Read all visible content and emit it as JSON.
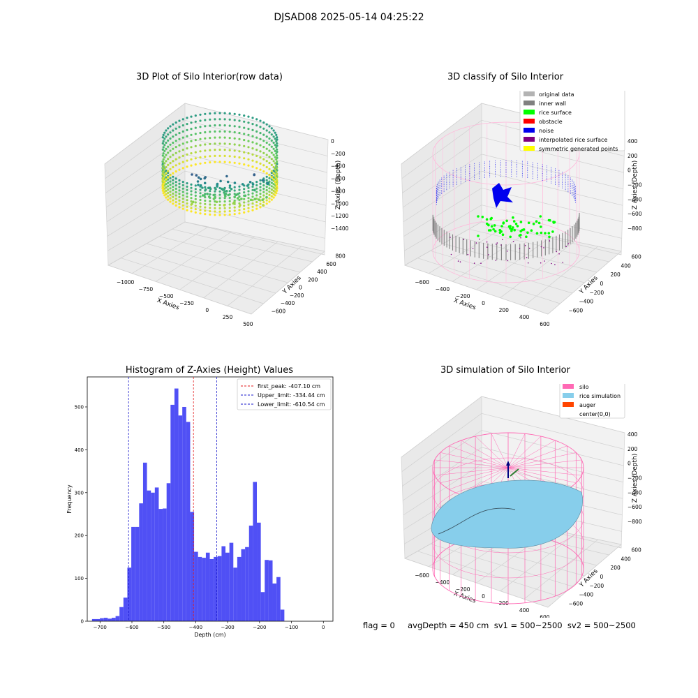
{
  "figure": {
    "title": "DJSAD08 2025-05-14 04:25:22",
    "status_line": "flag = 0     avgDepth = 450 cm  sv1 = 500~2500  sv2 = 500~2500"
  },
  "colors": {
    "hist_bar": "#5050f5",
    "first_peak": "#e31a1c",
    "limits": "#1a1acc",
    "original_data": "#b3b3b3",
    "inner_wall": "#808080",
    "rice_surface": "#00ff00",
    "obstacle": "#ff0000",
    "noise": "#0000ee",
    "interpolated_rice_surface": "#800080",
    "symmetric_generated_points": "#ffff00",
    "silo": "#ff69b4",
    "rice_simulation": "#87ceeb",
    "auger": "#ff4500"
  },
  "chart_data": [
    {
      "type": "scatter",
      "title": "3D Plot of Silo Interior(row data)",
      "xlabel": "X Axies",
      "ylabel": "Y Axies",
      "zlabel": "Z Axies (Depth)",
      "x_ticks": [
        "−1000",
        "−750",
        "−500",
        "−250",
        "0",
        "250",
        "500"
      ],
      "y_ticks": [
        "−600",
        "−400",
        "−200",
        "0",
        "200",
        "400",
        "600",
        "800"
      ],
      "z_ticks": [
        "0",
        "−200",
        "−400",
        "−600",
        "−800",
        "−1000",
        "−1200",
        "−1400"
      ],
      "colormap": "viridis"
    },
    {
      "type": "scatter",
      "title": "3D classify of Silo Interior",
      "xlabel": "X Axies",
      "ylabel": "Y Axies",
      "zlabel": "Z Axies (Depth)",
      "x_ticks": [
        "−600",
        "−400",
        "−200",
        "0",
        "200",
        "400",
        "600"
      ],
      "y_ticks": [
        "−600",
        "−400",
        "−200",
        "0",
        "200",
        "400",
        "600"
      ],
      "z_ticks": [
        "400",
        "200",
        "0",
        "−200",
        "−400",
        "−600",
        "−800"
      ],
      "legend": [
        "original data",
        "inner wall",
        "rice surface",
        "obstacle",
        "noise",
        "interpolated rice surface",
        "symmetric generated points"
      ],
      "legend_position": "top-right"
    },
    {
      "type": "bar",
      "title": "Histogram of Z-Axies (Height) Values",
      "xlabel": "Depth (cm)",
      "ylabel": "Frequency",
      "xlim": [
        -740,
        30
      ],
      "ylim": [
        0,
        570
      ],
      "x_ticks": [
        -700,
        -600,
        -500,
        -400,
        -300,
        -200,
        -100,
        0
      ],
      "x_tick_labels": [
        "−700",
        "−600",
        "−500",
        "−400",
        "−300",
        "−200",
        "−100",
        "0"
      ],
      "y_ticks": [
        0,
        100,
        200,
        300,
        400,
        500
      ],
      "bin_start": -725,
      "bin_width": 12.3,
      "values": [
        5,
        5,
        7,
        8,
        6,
        8,
        12,
        33,
        55,
        125,
        220,
        220,
        275,
        370,
        305,
        300,
        312,
        262,
        263,
        322,
        505,
        543,
        480,
        500,
        465,
        255,
        162,
        150,
        148,
        160,
        145,
        150,
        152,
        175,
        160,
        183,
        125,
        150,
        168,
        173,
        223,
        325,
        230,
        68,
        143,
        142,
        88,
        103,
        27
      ],
      "lines": [
        {
          "label": "first_peak: -407.10 cm",
          "x": -407.1,
          "color": "#e31a1c"
        },
        {
          "label": "Upper_limit: -334.44 cm",
          "x": -334.44,
          "color": "#1a1acc"
        },
        {
          "label": "Lower_limit: -610.54 cm",
          "x": -610.54,
          "color": "#1a1acc"
        }
      ],
      "legend_position": "top-right"
    },
    {
      "type": "scatter",
      "title": "3D simulation of Silo Interior",
      "xlabel": "X Axies",
      "ylabel": "Y Axies",
      "zlabel": "Z Axies (Depth)",
      "x_ticks": [
        "−600",
        "−400",
        "−200",
        "0",
        "200",
        "400",
        "600"
      ],
      "y_ticks": [
        "−600",
        "−400",
        "−200",
        "0",
        "200",
        "400",
        "600"
      ],
      "z_ticks": [
        "400",
        "200",
        "0",
        "−200",
        "−400",
        "−600",
        "−800"
      ],
      "legend": [
        "silo",
        "rice simulation",
        "auger",
        "center(0,0)"
      ],
      "legend_position": "top-right"
    }
  ]
}
